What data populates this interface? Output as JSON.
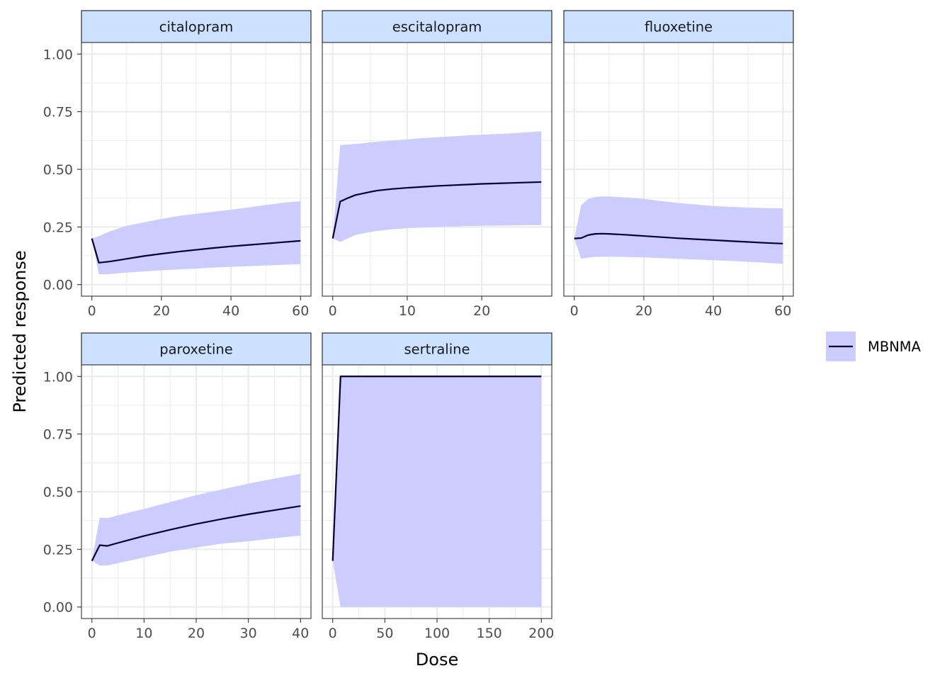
{
  "chart_data": {
    "type": "line",
    "xlabel": "Dose",
    "ylabel": "Predicted response",
    "legend": {
      "position": "right",
      "entries": [
        {
          "name": "MBNMA",
          "line_color": "#000033",
          "fill_color": "#ccccff"
        }
      ]
    },
    "colors": {
      "strip_fill": "#cce0ff",
      "ribbon_fill": "#ccccff",
      "line": "#000033",
      "grid": "#ebebeb",
      "axis_text": "#4d4d4d"
    },
    "y_ticks": [
      0,
      0.25,
      0.5,
      0.75,
      1.0
    ],
    "y_tick_labels": [
      "0.00",
      "0.25",
      "0.50",
      "0.75",
      "1.00"
    ],
    "ylim": [
      -0.05,
      1.05
    ],
    "grid": true,
    "facets": [
      {
        "name": "citalopram",
        "xlim": [
          -3,
          63
        ],
        "x_ticks": [
          0,
          20,
          40,
          60
        ],
        "x": [
          0,
          2,
          5,
          8,
          10,
          15,
          20,
          25,
          30,
          35,
          40,
          45,
          50,
          55,
          60
        ],
        "y": [
          0.2,
          0.095,
          0.1,
          0.107,
          0.112,
          0.124,
          0.134,
          0.143,
          0.151,
          0.159,
          0.166,
          0.172,
          0.178,
          0.184,
          0.19
        ],
        "lower": [
          0.2,
          0.045,
          0.046,
          0.049,
          0.052,
          0.057,
          0.062,
          0.066,
          0.07,
          0.074,
          0.077,
          0.08,
          0.083,
          0.086,
          0.089
        ],
        "upper": [
          0.2,
          0.21,
          0.23,
          0.245,
          0.255,
          0.27,
          0.285,
          0.298,
          0.307,
          0.316,
          0.325,
          0.335,
          0.345,
          0.355,
          0.362
        ]
      },
      {
        "name": "escitalopram",
        "xlim": [
          -1.4,
          29.4
        ],
        "x_ticks": [
          0,
          10,
          20
        ],
        "x": [
          0,
          1,
          2,
          3,
          4,
          5,
          6,
          8,
          10,
          12,
          14,
          16,
          18,
          20,
          22,
          24,
          26,
          28
        ],
        "y": [
          0.2,
          0.36,
          0.375,
          0.388,
          0.395,
          0.402,
          0.408,
          0.415,
          0.42,
          0.424,
          0.428,
          0.431,
          0.434,
          0.437,
          0.439,
          0.441,
          0.443,
          0.445
        ],
        "lower": [
          0.2,
          0.185,
          0.2,
          0.215,
          0.222,
          0.228,
          0.233,
          0.24,
          0.245,
          0.248,
          0.25,
          0.252,
          0.254,
          0.255,
          0.256,
          0.257,
          0.258,
          0.258
        ],
        "upper": [
          0.2,
          0.605,
          0.607,
          0.61,
          0.613,
          0.617,
          0.62,
          0.625,
          0.63,
          0.635,
          0.639,
          0.643,
          0.647,
          0.65,
          0.653,
          0.656,
          0.66,
          0.665
        ]
      },
      {
        "name": "fluoxetine",
        "xlim": [
          -3,
          63
        ],
        "x_ticks": [
          0,
          20,
          40,
          60
        ],
        "x": [
          0,
          2,
          4,
          6,
          8,
          10,
          15,
          20,
          25,
          30,
          35,
          40,
          45,
          50,
          55,
          60
        ],
        "y": [
          0.2,
          0.202,
          0.215,
          0.22,
          0.221,
          0.22,
          0.216,
          0.211,
          0.206,
          0.201,
          0.197,
          0.193,
          0.189,
          0.185,
          0.181,
          0.178
        ],
        "lower": [
          0.2,
          0.112,
          0.117,
          0.12,
          0.121,
          0.121,
          0.12,
          0.118,
          0.115,
          0.112,
          0.109,
          0.106,
          0.103,
          0.099,
          0.095,
          0.09
        ],
        "upper": [
          0.2,
          0.345,
          0.372,
          0.38,
          0.382,
          0.382,
          0.378,
          0.372,
          0.362,
          0.354,
          0.347,
          0.341,
          0.337,
          0.334,
          0.332,
          0.331
        ]
      },
      {
        "name": "paroxetine",
        "xlim": [
          -2,
          42
        ],
        "x_ticks": [
          0,
          10,
          20,
          30,
          40
        ],
        "x": [
          0,
          1.5,
          3,
          5,
          10,
          15,
          20,
          25,
          30,
          35,
          40
        ],
        "y": [
          0.2,
          0.268,
          0.265,
          0.278,
          0.308,
          0.335,
          0.36,
          0.382,
          0.402,
          0.42,
          0.438
        ],
        "lower": [
          0.2,
          0.18,
          0.18,
          0.19,
          0.215,
          0.24,
          0.258,
          0.275,
          0.285,
          0.298,
          0.31
        ],
        "upper": [
          0.2,
          0.388,
          0.385,
          0.398,
          0.425,
          0.455,
          0.485,
          0.51,
          0.535,
          0.557,
          0.578
        ]
      },
      {
        "name": "sertraline",
        "xlim": [
          -10,
          210
        ],
        "x_ticks": [
          0,
          50,
          100,
          150,
          200
        ],
        "x": [
          0,
          7.5,
          200
        ],
        "y": [
          0.2,
          1.0,
          1.0
        ],
        "lower": [
          0.2,
          0.0,
          0.0
        ],
        "upper": [
          0.2,
          1.0,
          1.0
        ]
      }
    ]
  }
}
